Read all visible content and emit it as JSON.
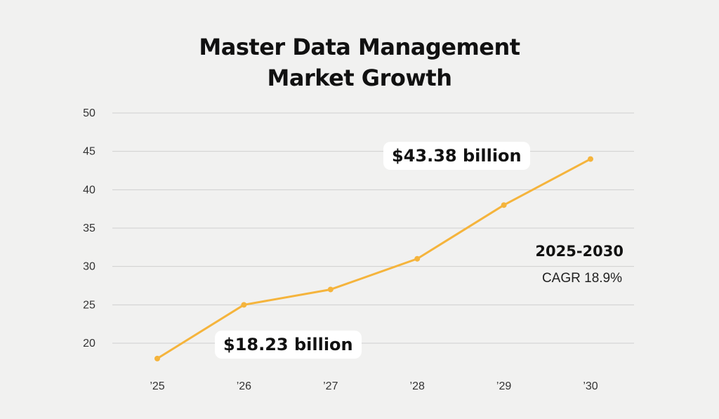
{
  "title_line1": "Master Data Management",
  "title_line2": "Market Growth",
  "annotations": {
    "start_value": "$18.23 billion",
    "end_value": "$43.38 billion",
    "cagr_period": "2025-2030",
    "cagr_rate": "CAGR 18.9%"
  },
  "colors": {
    "line": "#f5b43c",
    "grid": "#cfcfcf",
    "background": "#f1f1f0",
    "callout_bg": "#ffffff"
  },
  "chart_data": {
    "type": "line",
    "title": "Master Data Management Market Growth",
    "xlabel": "",
    "ylabel": "",
    "categories": [
      "’25",
      "’26",
      "’27",
      "’28",
      "’29",
      "’30"
    ],
    "series": [
      {
        "values": [
          18,
          25,
          27,
          31,
          38,
          44
        ]
      }
    ],
    "yticks": [
      20,
      25,
      30,
      35,
      40,
      45,
      50
    ],
    "ylim": [
      15,
      50
    ],
    "grid": true,
    "legend": "none"
  }
}
